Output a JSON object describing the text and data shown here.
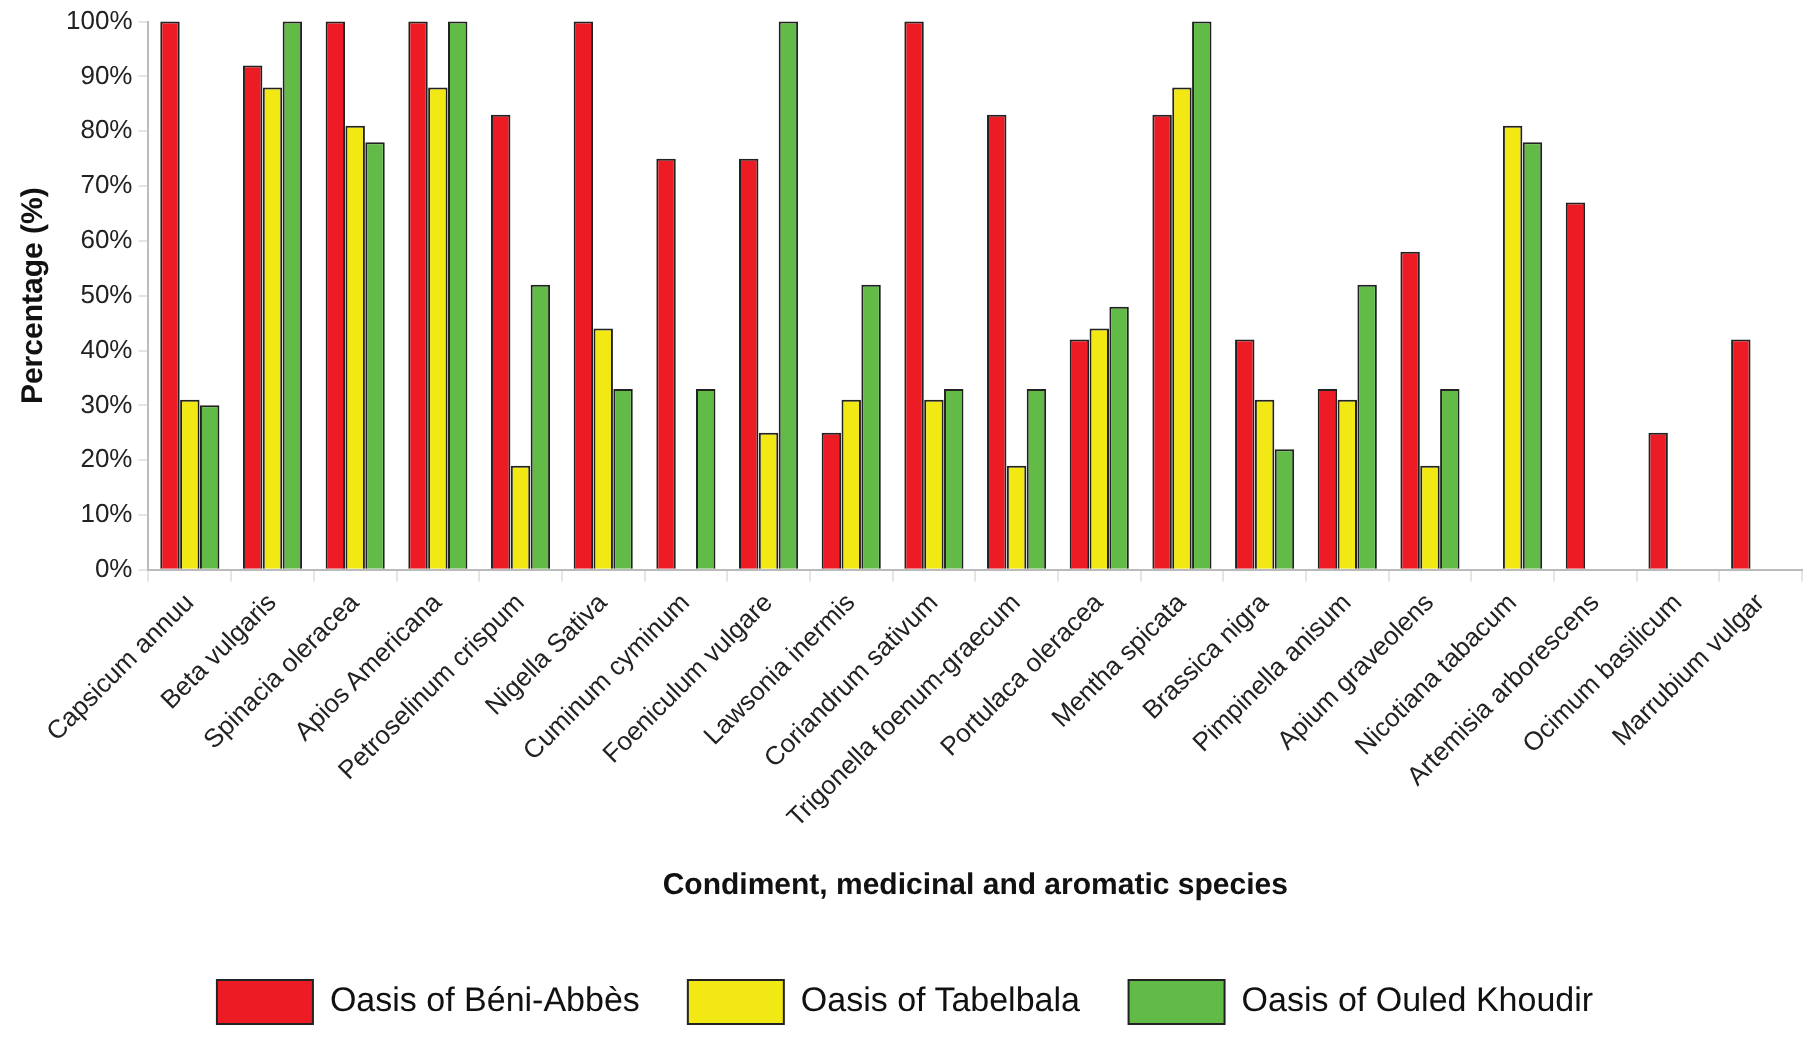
{
  "chart_data": {
    "type": "bar",
    "xlabel": "Condiment, medicinal and aromatic species",
    "ylabel": "Percentage (%)",
    "categories": [
      "Capsicum annuu",
      "Beta vulgaris",
      "Spinacia oleracea",
      "Apios Americana",
      "Petroselinum crispum",
      "Nigella Sativa",
      "Cuminum cyminum",
      "Foeniculum vulgare",
      "Lawsonia inermis",
      "Coriandrum sativum",
      "Trigonella foenum-graecum",
      "Portulaca oleracea",
      "Mentha spicata",
      "Brassica nigra",
      "Pimpinella anisum",
      "Apium graveolens",
      "Nicotiana tabacum",
      "Artemisia arborescens",
      "Ocimum basilicum",
      "Marrubium vulgar"
    ],
    "series": [
      {
        "name": "Oasis of Béni-Abbès",
        "color": "#ed1c24",
        "values": [
          100,
          92,
          100,
          100,
          83,
          100,
          75,
          75,
          25,
          100,
          83,
          42,
          83,
          42,
          33,
          58,
          0,
          67,
          25,
          42
        ]
      },
      {
        "name": "Oasis of Tabelbala",
        "color": "#f2e814",
        "values": [
          31,
          88,
          81,
          88,
          19,
          44,
          0,
          25,
          31,
          31,
          19,
          44,
          88,
          31,
          31,
          19,
          81,
          0,
          0,
          0
        ]
      },
      {
        "name": "Oasis of Ouled Khoudir",
        "color": "#62bb46",
        "values": [
          30,
          100,
          78,
          100,
          52,
          33,
          33,
          100,
          52,
          33,
          33,
          48,
          100,
          22,
          52,
          33,
          78,
          0,
          0,
          0
        ]
      }
    ],
    "ylim": [
      0,
      100
    ],
    "yticks": [
      {
        "value": 0,
        "label": "0%"
      },
      {
        "value": 10,
        "label": "10%"
      },
      {
        "value": 20,
        "label": "20%"
      },
      {
        "value": 30,
        "label": "30%"
      },
      {
        "value": 40,
        "label": "40%"
      },
      {
        "value": 50,
        "label": "50%"
      },
      {
        "value": 60,
        "label": "60%"
      },
      {
        "value": 70,
        "label": "70%"
      },
      {
        "value": 80,
        "label": "80%"
      },
      {
        "value": 90,
        "label": "90%"
      },
      {
        "value": 100,
        "label": "100%"
      }
    ],
    "grid": false,
    "legend": "bottom"
  }
}
